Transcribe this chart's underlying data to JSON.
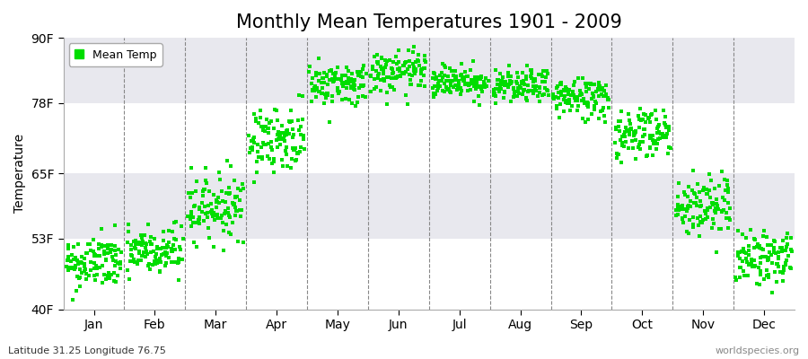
{
  "title": "Monthly Mean Temperatures 1901 - 2009",
  "ylabel": "Temperature",
  "xlabel_bottom_left": "Latitude 31.25 Longitude 76.75",
  "xlabel_bottom_right": "worldspecies.org",
  "legend_label": "Mean Temp",
  "dot_color": "#00dd00",
  "background_color": "#ffffff",
  "plot_bg_color": "#ffffff",
  "band_color": "#e8e8ee",
  "yticks": [
    40,
    53,
    65,
    78,
    90
  ],
  "ytick_labels": [
    "40F",
    "53F",
    "65F",
    "78F",
    "90F"
  ],
  "months": [
    "Jan",
    "Feb",
    "Mar",
    "Apr",
    "May",
    "Jun",
    "Jul",
    "Aug",
    "Sep",
    "Oct",
    "Nov",
    "Dec"
  ],
  "month_centers": [
    0.5,
    1.5,
    2.5,
    3.5,
    4.5,
    5.5,
    6.5,
    7.5,
    8.5,
    9.5,
    10.5,
    11.5
  ],
  "month_dividers": [
    1.0,
    2.0,
    3.0,
    4.0,
    5.0,
    6.0,
    7.0,
    8.0,
    9.0,
    10.0,
    11.0
  ],
  "ylim": [
    40,
    90
  ],
  "xlim": [
    0,
    12
  ],
  "num_years": 109,
  "monthly_means_F": [
    48.5,
    50.5,
    59.0,
    71.5,
    81.5,
    83.5,
    82.0,
    81.0,
    79.0,
    72.5,
    59.0,
    49.5
  ],
  "monthly_stds_F": [
    2.5,
    2.5,
    3.0,
    3.0,
    2.0,
    2.0,
    1.5,
    1.5,
    2.0,
    2.5,
    3.0,
    2.5
  ],
  "monthly_trend_F": [
    0.3,
    0.3,
    0.2,
    0.2,
    0.1,
    0.1,
    0.1,
    0.1,
    0.1,
    0.2,
    0.2,
    0.3
  ],
  "marker_size": 12,
  "title_fontsize": 15,
  "axis_fontsize": 10,
  "tick_fontsize": 10,
  "legend_fontsize": 9
}
